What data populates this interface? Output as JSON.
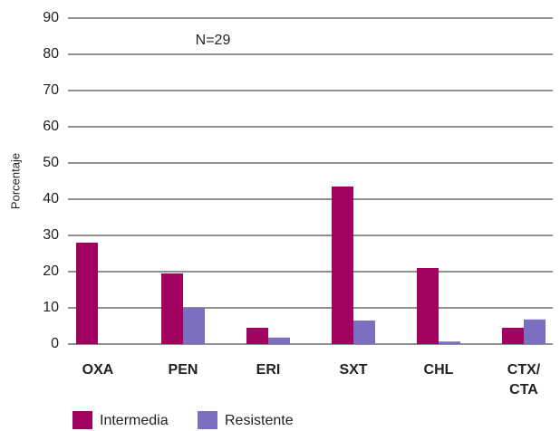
{
  "chart_data": {
    "type": "bar",
    "y_label": "Porcentaje",
    "annotation": "N=29",
    "categories": [
      "OXA",
      "PEN",
      "ERI",
      "SXT",
      "CHL",
      "CTX/\nCTA"
    ],
    "series": [
      {
        "name": "Intermedia",
        "color": "#a0005e",
        "values": [
          28,
          19.5,
          4.5,
          43.5,
          21,
          4.5
        ]
      },
      {
        "name": "Resistente",
        "color": "#7b6fbf",
        "values": [
          0,
          10,
          1.8,
          6.5,
          0.7,
          6.8
        ]
      }
    ],
    "ylim": [
      0,
      90
    ],
    "yticks": [
      0,
      10,
      20,
      30,
      40,
      50,
      60,
      70,
      80,
      90
    ],
    "grid": true
  }
}
